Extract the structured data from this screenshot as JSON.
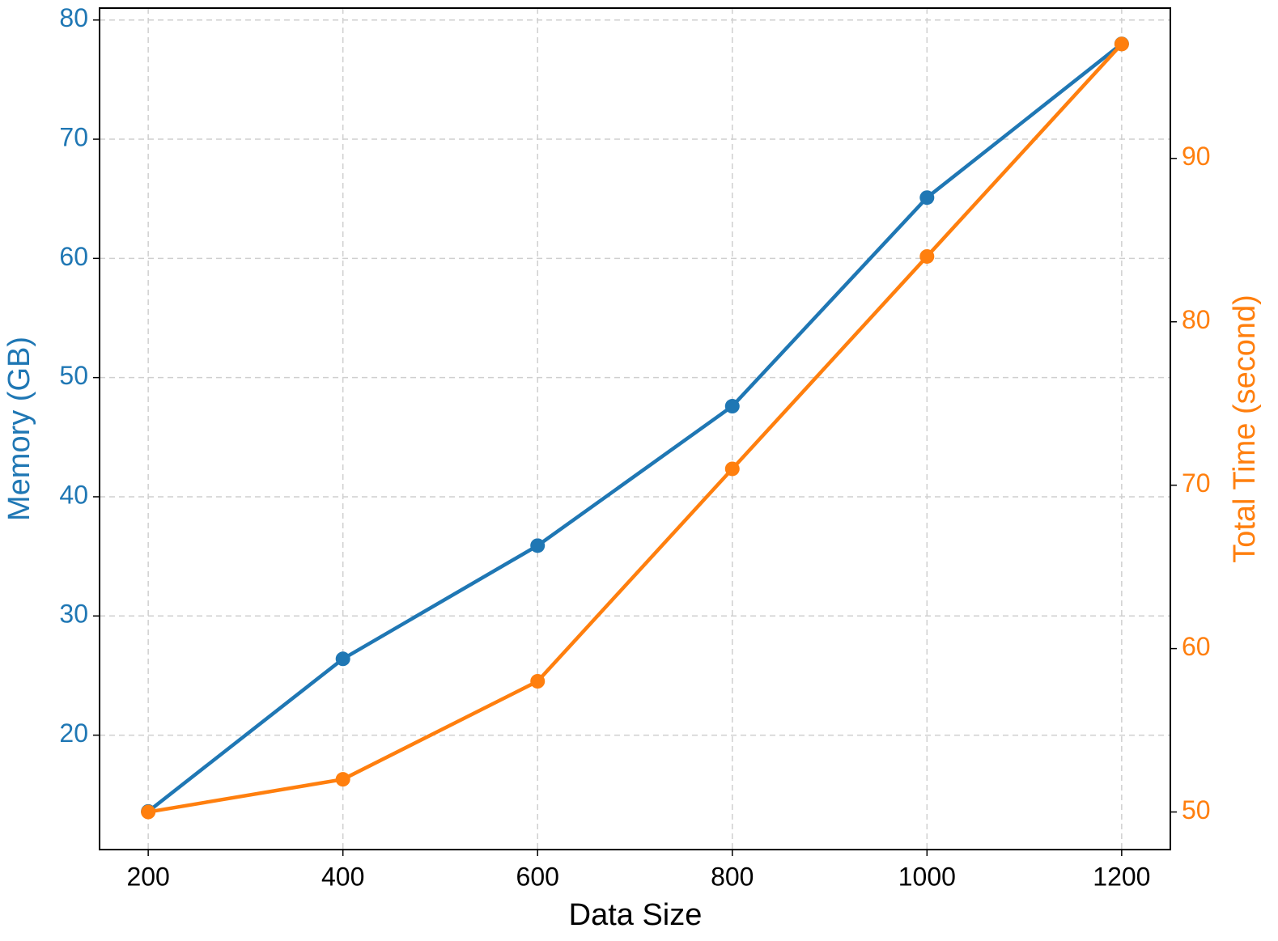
{
  "chart_data": {
    "type": "line",
    "x_label": "Data Size",
    "y_label": "Memory (GB)",
    "y2_label": "Total Time (second)",
    "x": [
      200,
      400,
      600,
      800,
      1000,
      1200
    ],
    "series": [
      {
        "name": "Memory (GB)",
        "color": "#1f77b4",
        "values": [
          13.6,
          26.4,
          35.9,
          47.6,
          65.1,
          78.0
        ]
      },
      {
        "name": "Total Time (second)",
        "color": "#ff7f0e",
        "axis": "y2",
        "values": [
          50.0,
          52.0,
          58.0,
          71.0,
          84.0,
          97.0
        ]
      }
    ],
    "xlim": [
      150,
      1250
    ],
    "xticks": [
      200,
      400,
      600,
      800,
      1000,
      1200
    ],
    "ylim": [
      10.4,
      81.0
    ],
    "yticks": [
      20,
      30,
      40,
      50,
      60,
      70,
      80
    ],
    "y2lim": [
      47.7,
      99.2
    ],
    "y2ticks": [
      50,
      60,
      70,
      80,
      90
    ],
    "grid": true
  }
}
